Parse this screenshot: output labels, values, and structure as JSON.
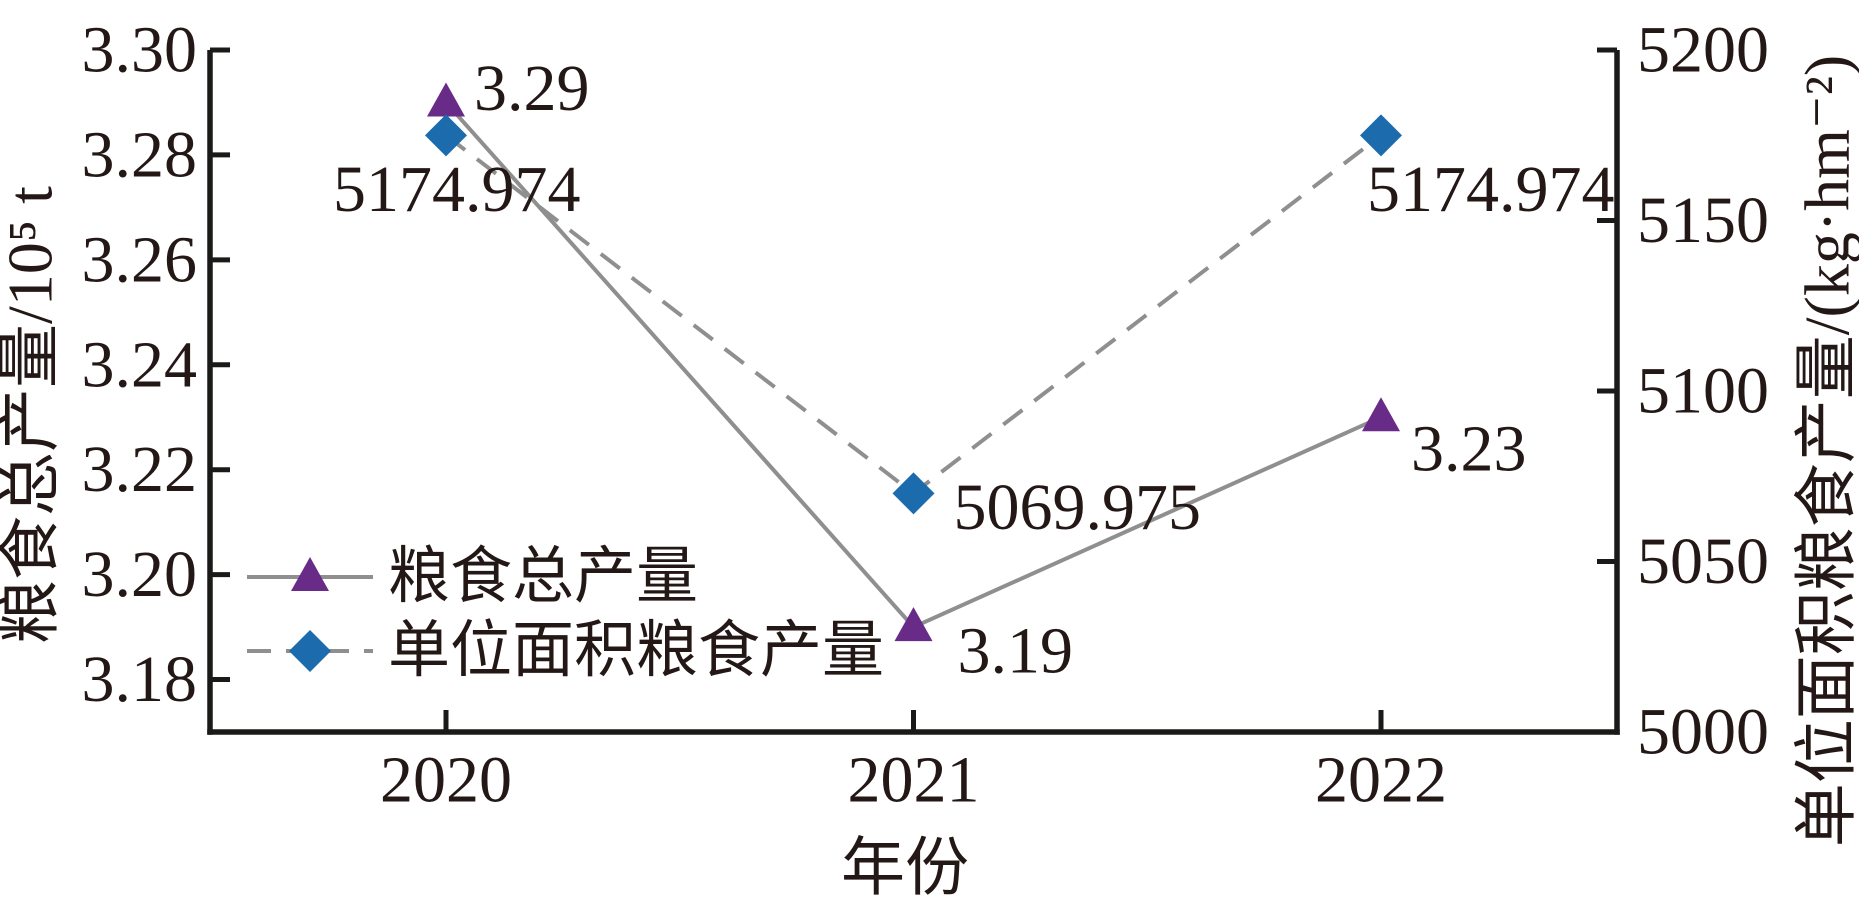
{
  "figure": {
    "background": "#ffffff",
    "text_color": "#231815",
    "axis_color": "#1a1a18",
    "line_color": "#8f8f8f"
  },
  "chart_data": {
    "type": "line",
    "x_categories": [
      "2020",
      "2021",
      "2022"
    ],
    "xlabel": "年份",
    "left_axis": {
      "label": "粮食总产量/10⁵ t",
      "ticks": [
        "3.30",
        "3.28",
        "3.26",
        "3.24",
        "3.22",
        "3.20",
        "3.18"
      ],
      "ylim": [
        3.17,
        3.3
      ]
    },
    "right_axis": {
      "label": "单位面积粮食产量/(kg·hm⁻²)",
      "ticks": [
        "5200",
        "5150",
        "5100",
        "5050",
        "5000"
      ],
      "ylim": [
        5000,
        5200
      ]
    },
    "series": [
      {
        "name": "粮食总产量",
        "axis": "left",
        "values": [
          3.29,
          3.19,
          3.23
        ],
        "point_labels": [
          "3.29",
          "3.19",
          "3.23"
        ],
        "marker": "triangle",
        "marker_color": "#682b87",
        "line_color": "#8f8f8f",
        "line_style": "solid"
      },
      {
        "name": "单位面积粮食产量",
        "axis": "right",
        "values": [
          5174.974,
          5069.975,
          5174.974
        ],
        "point_labels": [
          "5174.974",
          "5069.975",
          "5174.974"
        ],
        "marker": "diamond",
        "marker_color": "#1c6cad",
        "line_color": "#8f8f8f",
        "line_style": "dashed"
      }
    ],
    "legend": {
      "position": "lower-left",
      "entries": [
        "粮食总产量",
        "单位面积粮食产量"
      ]
    }
  }
}
